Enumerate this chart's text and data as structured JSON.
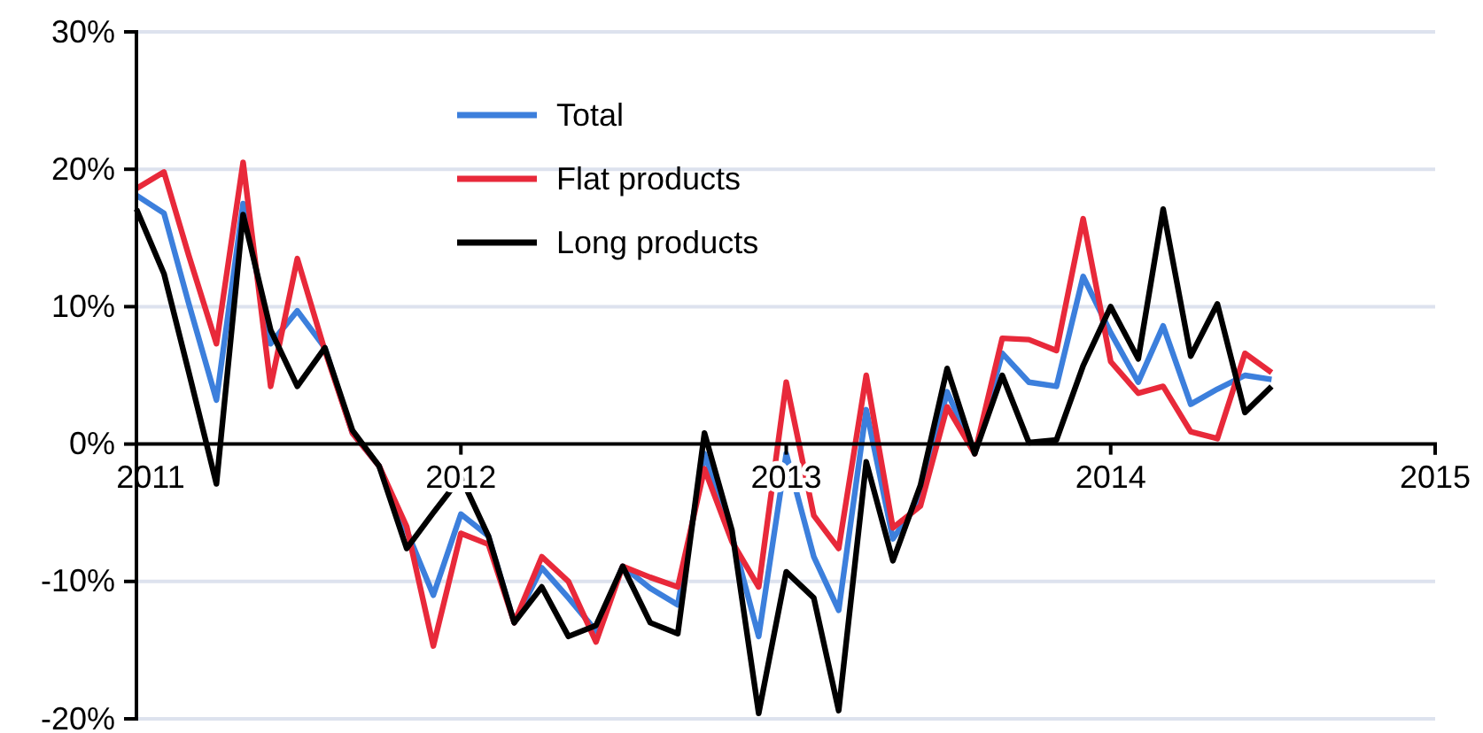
{
  "chart_data": {
    "type": "line",
    "x": [
      "2011-01",
      "2011-02",
      "2011-03",
      "2011-04",
      "2011-05",
      "2011-06",
      "2011-07",
      "2011-08",
      "2011-09",
      "2011-10",
      "2011-11",
      "2011-12",
      "2012-01",
      "2012-02",
      "2012-03",
      "2012-04",
      "2012-05",
      "2012-06",
      "2012-07",
      "2012-08",
      "2012-09",
      "2012-10",
      "2012-11",
      "2012-12",
      "2013-01",
      "2013-02",
      "2013-03",
      "2013-04",
      "2013-05",
      "2013-06",
      "2013-07",
      "2013-08",
      "2013-09",
      "2013-10",
      "2013-11",
      "2013-12",
      "2014-01",
      "2014-02",
      "2014-03",
      "2014-04",
      "2014-05",
      "2014-06",
      "2014-07"
    ],
    "series": [
      {
        "name": "Total",
        "color": "#3c7fdc",
        "values": [
          18.1,
          16.8,
          10.2,
          3.2,
          17.5,
          7.3,
          9.7,
          7.0,
          0.8,
          -1.6,
          -6.3,
          -11.0,
          -5.1,
          -6.7,
          -13.0,
          -9.0,
          -11.2,
          -13.6,
          -8.9,
          -10.5,
          -11.7,
          -0.7,
          -6.7,
          -14.0,
          -0.7,
          -8.2,
          -12.1,
          2.5,
          -6.9,
          -4.0,
          3.8,
          -0.7,
          6.6,
          4.5,
          4.2,
          12.2,
          8.1,
          4.5,
          8.6,
          2.9,
          4.0,
          5.0,
          4.7
        ]
      },
      {
        "name": "Flat products",
        "color": "#e8293a",
        "values": [
          18.6,
          19.8,
          13.7,
          7.3,
          20.5,
          4.2,
          13.5,
          6.8,
          0.8,
          -1.6,
          -6.0,
          -14.7,
          -6.5,
          -7.3,
          -13.0,
          -8.2,
          -10.0,
          -14.4,
          -8.9,
          -9.7,
          -10.4,
          -1.8,
          -7.1,
          -10.4,
          4.5,
          -5.2,
          -7.6,
          5.0,
          -6.1,
          -4.5,
          2.7,
          -0.7,
          7.7,
          7.6,
          6.8,
          16.4,
          6.0,
          3.7,
          4.2,
          0.9,
          0.4,
          6.6,
          5.2
        ]
      },
      {
        "name": "Long products",
        "color": "#000000",
        "values": [
          17.1,
          12.4,
          5.2,
          -2.9,
          16.7,
          8.3,
          4.2,
          7.0,
          1.0,
          -1.6,
          -7.6,
          -5.0,
          -2.4,
          -6.7,
          -13.0,
          -10.4,
          -14.0,
          -13.2,
          -8.9,
          -13.0,
          -13.8,
          0.8,
          -6.3,
          -19.6,
          -9.3,
          -11.2,
          -19.4,
          -1.3,
          -8.5,
          -3.0,
          5.5,
          -0.7,
          5.0,
          0.1,
          0.3,
          5.7,
          10.0,
          6.2,
          17.1,
          6.4,
          10.2,
          2.3,
          4.2
        ]
      }
    ],
    "xlim": [
      "2011-01",
      "2015-01"
    ],
    "xticks": [
      {
        "value": "2011-01",
        "label": "2011"
      },
      {
        "value": "2012-01",
        "label": "2012"
      },
      {
        "value": "2013-01",
        "label": "2013"
      },
      {
        "value": "2014-01",
        "label": "2014"
      },
      {
        "value": "2015-01",
        "label": "2015"
      }
    ],
    "ylim": [
      -20,
      30
    ],
    "yticks": [
      {
        "value": -20,
        "label": "-20%"
      },
      {
        "value": -10,
        "label": "-10%"
      },
      {
        "value": 0,
        "label": "0%"
      },
      {
        "value": 10,
        "label": "10%"
      },
      {
        "value": 20,
        "label": "20%"
      },
      {
        "value": 30,
        "label": "30%"
      }
    ],
    "grid": "y",
    "legend": "top",
    "marker": "none",
    "line_style": "solid"
  }
}
